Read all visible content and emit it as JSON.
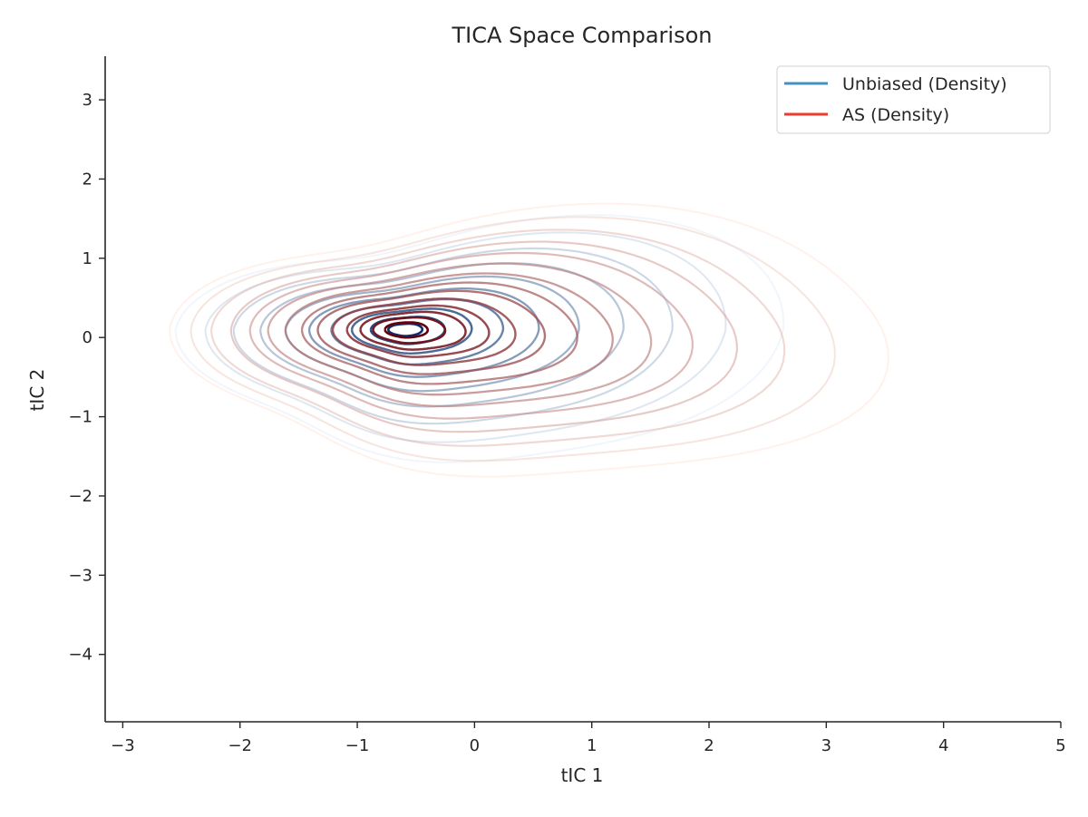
{
  "chart_data": {
    "type": "contour",
    "title": "TICA Space Comparison",
    "xlabel": "tIC 1",
    "ylabel": "tIC 2",
    "xlim": [
      -3.15,
      5.0
    ],
    "ylim": [
      -4.85,
      3.55
    ],
    "x_ticks": [
      -3,
      -2,
      -1,
      0,
      1,
      2,
      3,
      4,
      5
    ],
    "y_ticks": [
      -4,
      -3,
      -2,
      -1,
      0,
      1,
      2,
      3
    ],
    "x_tick_labels": [
      "−3",
      "−2",
      "−1",
      "0",
      "1",
      "2",
      "3",
      "4",
      "5"
    ],
    "y_tick_labels": [
      "−4",
      "−3",
      "−2",
      "−1",
      "0",
      "1",
      "2",
      "3"
    ],
    "grid": false,
    "legend_position": "top-right",
    "series": [
      {
        "name": "Unbiased (Density)",
        "legend_color": "#4292c6",
        "center": [
          -0.6,
          0.1
        ],
        "levels": 10,
        "color_light": "#deebf7",
        "color_dark": "#08306b"
      },
      {
        "name": "AS (Density)",
        "legend_color": "#ef3b2c",
        "center": [
          -0.6,
          0.1
        ],
        "levels": 14,
        "color_light": "#fee0d2",
        "color_dark": "#67000d"
      }
    ]
  }
}
